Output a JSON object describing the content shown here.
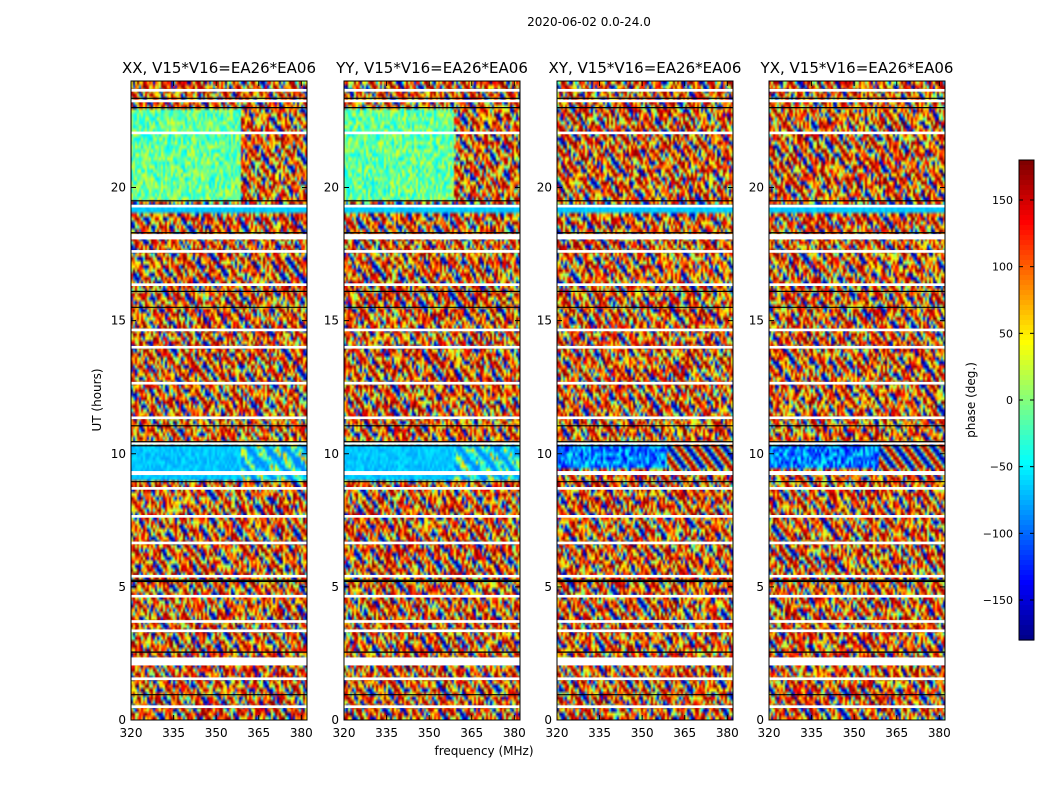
{
  "figure": {
    "suptitle": "2020-06-02 0.0-24.0"
  },
  "chart_data": {
    "type": "heatmap",
    "description_fields": "waterfall plots of visibility phase vs frequency and UT",
    "xlabel": "frequency (MHz)",
    "ylabel": "UT (hours)",
    "xlim": [
      320,
      382
    ],
    "ylim": [
      0,
      24
    ],
    "xticks": [
      320,
      335,
      350,
      365,
      380
    ],
    "yticks": [
      0,
      5,
      10,
      15,
      20
    ],
    "panels": [
      {
        "title": "XX, V15*V16=EA26*EA06"
      },
      {
        "title": "YY, V15*V16=EA26*EA06"
      },
      {
        "title": "XY, V15*V16=EA26*EA06"
      },
      {
        "title": "YX, V15*V16=EA26*EA06"
      }
    ],
    "colorbar": {
      "label": "phase (deg.)",
      "range": [
        -180,
        180
      ],
      "ticks": [
        150,
        100,
        50,
        0,
        -50,
        -100,
        -150
      ],
      "tick_labels": [
        "150",
        "100",
        "50",
        "0",
        "−50",
        "−100",
        "−150"
      ],
      "colormap": "jet"
    },
    "flagged_time_ranges_hours": [
      [
        0.45,
        0.55
      ],
      [
        1.5,
        1.6
      ],
      [
        2.05,
        2.35
      ],
      [
        3.3,
        3.4
      ],
      [
        3.65,
        3.75
      ],
      [
        4.6,
        4.7
      ],
      [
        5.35,
        5.45
      ],
      [
        6.6,
        6.7
      ],
      [
        7.6,
        7.7
      ],
      [
        8.65,
        8.75
      ],
      [
        9.2,
        9.35
      ],
      [
        10.35,
        10.45
      ],
      [
        11.3,
        11.4
      ],
      [
        12.6,
        12.7
      ],
      [
        13.95,
        14.05
      ],
      [
        14.6,
        14.7
      ],
      [
        16.3,
        16.4
      ],
      [
        17.55,
        17.65
      ],
      [
        18.05,
        18.25
      ],
      [
        19.25,
        19.35
      ],
      [
        22.0,
        22.1
      ],
      [
        23.2,
        23.3
      ],
      [
        23.6,
        23.7
      ]
    ],
    "dark_time_lines_hours": [
      0.95,
      2.55,
      5.2,
      5.25,
      8.95,
      10.3,
      10.45,
      11.05,
      15.5,
      16.1,
      18.3,
      19.5,
      23.0,
      23.35
    ]
  },
  "colors": {
    "axis": "#000000",
    "flag": "#ffffff"
  }
}
